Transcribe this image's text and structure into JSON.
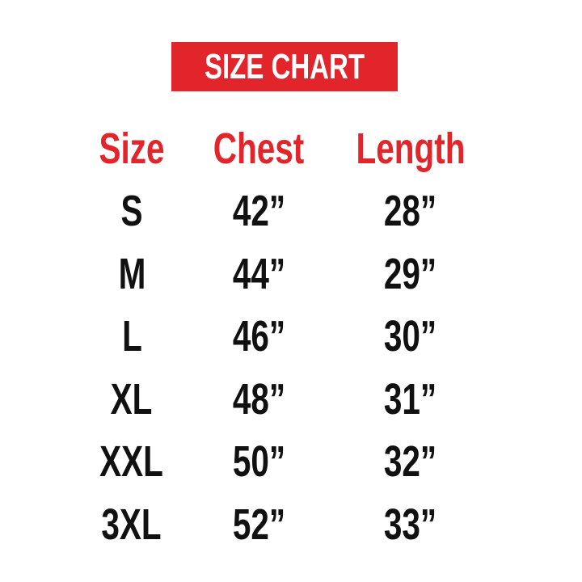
{
  "banner": {
    "title": "SIZE CHART"
  },
  "colors": {
    "accent_red": "#E2242B",
    "text_black": "#111111",
    "banner_text": "#FFFFFF",
    "background": "#FFFFFF"
  },
  "table": {
    "headers": {
      "size": "Size",
      "chest": "Chest",
      "length": "Length"
    },
    "rows": [
      {
        "size": "S",
        "chest": "42”",
        "length": "28”"
      },
      {
        "size": "M",
        "chest": "44”",
        "length": "29”"
      },
      {
        "size": "L",
        "chest": "46”",
        "length": "30”"
      },
      {
        "size": "XL",
        "chest": "48”",
        "length": "31”"
      },
      {
        "size": "XXL",
        "chest": "50”",
        "length": "32”"
      },
      {
        "size": "3XL",
        "chest": "52”",
        "length": "33”"
      }
    ]
  },
  "chart_data": {
    "type": "table",
    "title": "SIZE CHART",
    "columns": [
      "Size",
      "Chest",
      "Length"
    ],
    "rows": [
      [
        "S",
        "42”",
        "28”"
      ],
      [
        "M",
        "44”",
        "29”"
      ],
      [
        "L",
        "46”",
        "30”"
      ],
      [
        "XL",
        "48”",
        "31”"
      ],
      [
        "XXL",
        "50”",
        "32”"
      ],
      [
        "3XL",
        "52”",
        "33”"
      ]
    ],
    "chest_values": [
      42,
      44,
      46,
      48,
      50,
      52
    ],
    "length_values": [
      28,
      29,
      30,
      31,
      32,
      33
    ]
  }
}
